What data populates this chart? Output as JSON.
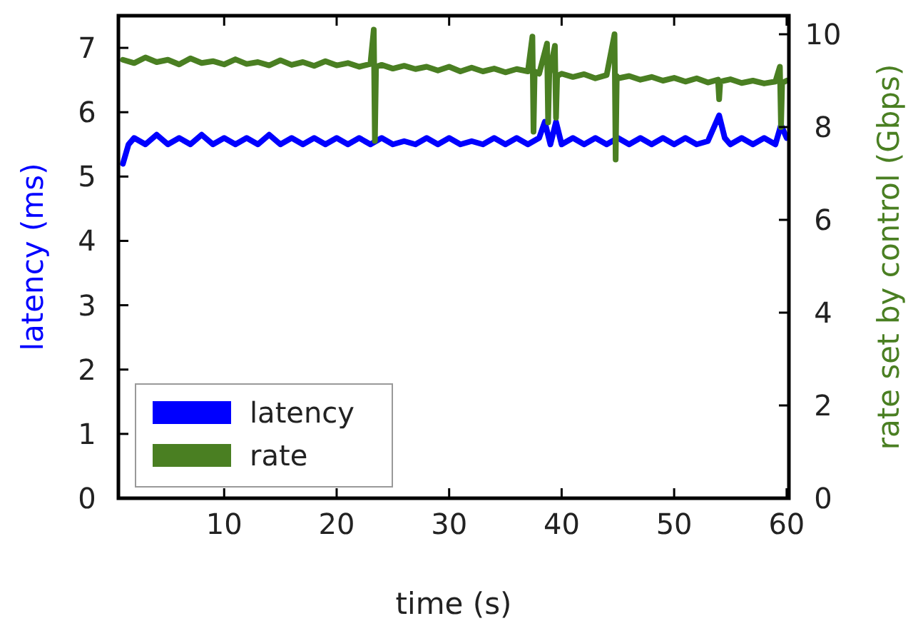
{
  "chart_data": {
    "type": "line",
    "xlabel": "time (s)",
    "ylabel": "latency (ms)",
    "y2label": "rate set by control (Gbps)",
    "xlim": [
      0.6,
      60.2
    ],
    "xticks": [
      10,
      20,
      30,
      40,
      50,
      60
    ],
    "ylim": [
      0,
      7.5
    ],
    "yticks": [
      0,
      1,
      2,
      3,
      4,
      5,
      6,
      7
    ],
    "y2lim": [
      0,
      10.4
    ],
    "y2ticks": [
      0,
      2,
      4,
      6,
      8,
      10
    ],
    "grid": false,
    "legend": "bottom left",
    "marker": "none",
    "line_style": "solid",
    "series": [
      {
        "name": "latency",
        "color": "#0000ff",
        "x": [
          1,
          1.5,
          2,
          3,
          4,
          5,
          6,
          7,
          8,
          9,
          10,
          11,
          12,
          13,
          14,
          15,
          16,
          17,
          18,
          19,
          20,
          21,
          22,
          23,
          24,
          25,
          26,
          27,
          28,
          29,
          30,
          31,
          32,
          33,
          34,
          35,
          36,
          37,
          38,
          38.5,
          39,
          39.5,
          40,
          41,
          42,
          43,
          44,
          45,
          46,
          47,
          48,
          49,
          50,
          51,
          52,
          53,
          54,
          54.5,
          55,
          56,
          57,
          58,
          59,
          59.5,
          60
        ],
        "values": [
          5.2,
          5.5,
          5.6,
          5.5,
          5.65,
          5.5,
          5.6,
          5.5,
          5.65,
          5.5,
          5.6,
          5.5,
          5.6,
          5.5,
          5.65,
          5.5,
          5.6,
          5.5,
          5.6,
          5.5,
          5.6,
          5.5,
          5.6,
          5.5,
          5.6,
          5.5,
          5.55,
          5.5,
          5.6,
          5.5,
          5.6,
          5.5,
          5.55,
          5.5,
          5.6,
          5.5,
          5.6,
          5.5,
          5.6,
          5.85,
          5.5,
          5.85,
          5.5,
          5.6,
          5.5,
          5.6,
          5.5,
          5.6,
          5.5,
          5.6,
          5.5,
          5.6,
          5.5,
          5.6,
          5.5,
          5.55,
          5.95,
          5.6,
          5.5,
          5.6,
          5.5,
          5.6,
          5.5,
          5.8,
          5.6
        ]
      },
      {
        "name": "rate",
        "color": "#4a7f22",
        "axis": "y2",
        "x": [
          1,
          2,
          3,
          4,
          5,
          6,
          7,
          8,
          9,
          10,
          11,
          12,
          13,
          14,
          15,
          16,
          17,
          18,
          19,
          20,
          21,
          22,
          23,
          23.3,
          23.4,
          23.5,
          24,
          25,
          26,
          27,
          28,
          29,
          30,
          31,
          32,
          33,
          34,
          35,
          36,
          37,
          37.4,
          37.5,
          37.6,
          38,
          38.7,
          38.8,
          38.9,
          39.4,
          39.5,
          39.6,
          40,
          41,
          42,
          43,
          44,
          44.7,
          44.8,
          44.9,
          45,
          46,
          47,
          48,
          49,
          50,
          51,
          52,
          53,
          53.9,
          54,
          54.1,
          55,
          56,
          57,
          58,
          59,
          59.4,
          59.5,
          59.6,
          60
        ],
        "values": [
          9.45,
          9.38,
          9.5,
          9.4,
          9.45,
          9.35,
          9.48,
          9.38,
          9.42,
          9.35,
          9.46,
          9.36,
          9.4,
          9.33,
          9.44,
          9.34,
          9.4,
          9.32,
          9.42,
          9.33,
          9.38,
          9.3,
          9.36,
          10.1,
          7.7,
          9.3,
          9.34,
          9.26,
          9.32,
          9.25,
          9.3,
          9.22,
          9.3,
          9.2,
          9.28,
          9.2,
          9.26,
          9.18,
          9.25,
          9.2,
          9.95,
          7.9,
          9.2,
          9.15,
          9.8,
          8.1,
          9.15,
          9.75,
          8.2,
          9.1,
          9.15,
          9.08,
          9.14,
          9.05,
          9.12,
          10.0,
          7.3,
          9.1,
          9.05,
          9.1,
          9.02,
          9.08,
          9.0,
          9.06,
          8.98,
          9.05,
          8.96,
          9.02,
          8.6,
          8.98,
          9.03,
          8.95,
          9.0,
          8.94,
          8.98,
          9.3,
          8.0,
          8.95,
          9.0
        ]
      }
    ]
  }
}
